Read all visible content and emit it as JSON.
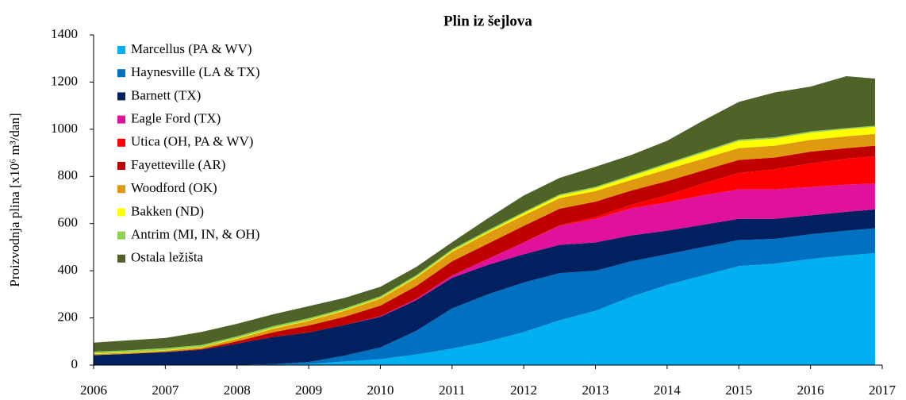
{
  "chart_data": {
    "type": "stacked_area",
    "title": "Plin iz šejlova",
    "y_label": "Proizvodnja plina [x10⁶ m³/dan]",
    "x": [
      2006,
      2006.5,
      2007,
      2007.5,
      2008,
      2008.5,
      2009,
      2009.5,
      2010,
      2010.5,
      2011,
      2011.5,
      2012,
      2012.5,
      2013,
      2013.5,
      2014,
      2014.5,
      2015,
      2015.5,
      2016,
      2016.5,
      2016.9
    ],
    "xlim": [
      2006,
      2017
    ],
    "xticks": [
      2006,
      2007,
      2008,
      2009,
      2010,
      2011,
      2012,
      2013,
      2014,
      2015,
      2016,
      2017
    ],
    "ylim": [
      0,
      1400
    ],
    "yticks": [
      0,
      200,
      400,
      600,
      800,
      1000,
      1200,
      1400
    ],
    "grid": false,
    "legend": "upper left",
    "series": [
      {
        "name": "Marcellus (PA & WV)",
        "color": "#00b0f0",
        "values": [
          0,
          0,
          0,
          0,
          0,
          1,
          5,
          15,
          25,
          45,
          70,
          100,
          140,
          190,
          230,
          290,
          340,
          380,
          420,
          430,
          450,
          465,
          475
        ]
      },
      {
        "name": "Haynesville (LA & TX)",
        "color": "#0070c0",
        "values": [
          0,
          0,
          0,
          0,
          1,
          3,
          8,
          25,
          50,
          100,
          170,
          200,
          210,
          200,
          170,
          150,
          130,
          120,
          110,
          105,
          105,
          105,
          105
        ]
      },
      {
        "name": "Barnett (TX)",
        "color": "#002060",
        "values": [
          42,
          48,
          55,
          65,
          90,
          115,
          125,
          130,
          130,
          130,
          130,
          125,
          120,
          120,
          120,
          110,
          100,
          95,
          90,
          85,
          80,
          80,
          80
        ]
      },
      {
        "name": "Eagle Ford (TX)",
        "color": "#e0119b",
        "values": [
          0,
          0,
          0,
          0,
          0,
          0,
          0,
          0,
          2,
          5,
          10,
          25,
          50,
          80,
          100,
          115,
          120,
          125,
          125,
          125,
          120,
          115,
          110
        ]
      },
      {
        "name": "Utica (OH, PA & WV)",
        "color": "#ff0000",
        "values": [
          0,
          0,
          0,
          0,
          0,
          0,
          0,
          0,
          0,
          0,
          0,
          0,
          0,
          3,
          8,
          15,
          30,
          50,
          70,
          85,
          100,
          110,
          115
        ]
      },
      {
        "name": "Fayetteville (AR)",
        "color": "#c00000",
        "values": [
          0,
          0,
          1,
          3,
          10,
          20,
          30,
          35,
          45,
          55,
          60,
          65,
          70,
          70,
          65,
          60,
          60,
          55,
          55,
          50,
          50,
          45,
          45
        ]
      },
      {
        "name": "Woodford (OK)",
        "color": "#e09a10",
        "values": [
          5,
          5,
          6,
          7,
          10,
          15,
          20,
          25,
          30,
          35,
          40,
          45,
          45,
          45,
          45,
          45,
          50,
          50,
          50,
          50,
          50,
          50,
          50
        ]
      },
      {
        "name": "Bakken (ND)",
        "color": "#ffff00",
        "values": [
          2,
          2,
          2,
          2,
          3,
          3,
          3,
          3,
          3,
          4,
          4,
          5,
          8,
          10,
          12,
          15,
          20,
          25,
          30,
          30,
          30,
          30,
          30
        ]
      },
      {
        "name": "Antrim (MI, IN, & OH)",
        "color": "#92d050",
        "values": [
          8,
          8,
          8,
          8,
          8,
          8,
          8,
          7,
          7,
          7,
          7,
          7,
          6,
          6,
          6,
          6,
          6,
          6,
          6,
          6,
          6,
          5,
          5
        ]
      },
      {
        "name": "Ostala ležišta",
        "color": "#4f6228",
        "values": [
          38,
          42,
          43,
          55,
          53,
          50,
          51,
          45,
          40,
          35,
          30,
          50,
          70,
          70,
          85,
          85,
          95,
          130,
          160,
          190,
          190,
          220,
          200
        ]
      }
    ]
  }
}
